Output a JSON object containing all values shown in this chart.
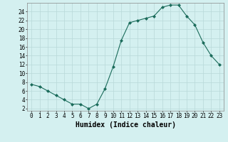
{
  "x": [
    0,
    1,
    2,
    3,
    4,
    5,
    6,
    7,
    8,
    9,
    10,
    11,
    12,
    13,
    14,
    15,
    16,
    17,
    18,
    19,
    20,
    21,
    22,
    23
  ],
  "y": [
    7.5,
    7,
    6,
    5,
    4,
    3,
    3,
    2,
    3,
    6.5,
    11.5,
    17.5,
    21.5,
    22,
    22.5,
    23,
    25,
    25.5,
    25.5,
    23,
    21,
    17,
    14,
    12
  ],
  "line_color": "#1a6b5a",
  "marker": "D",
  "marker_size": 2,
  "bg_color": "#d4f0f0",
  "grid_color": "#b8d8d8",
  "xlabel": "Humidex (Indice chaleur)",
  "xlim": [
    -0.5,
    23.5
  ],
  "ylim": [
    1.5,
    26
  ],
  "xticks": [
    0,
    1,
    2,
    3,
    4,
    5,
    6,
    7,
    8,
    9,
    10,
    11,
    12,
    13,
    14,
    15,
    16,
    17,
    18,
    19,
    20,
    21,
    22,
    23
  ],
  "yticks": [
    2,
    4,
    6,
    8,
    10,
    12,
    14,
    16,
    18,
    20,
    22,
    24
  ],
  "tick_label_fontsize": 5.5,
  "xlabel_fontsize": 7
}
